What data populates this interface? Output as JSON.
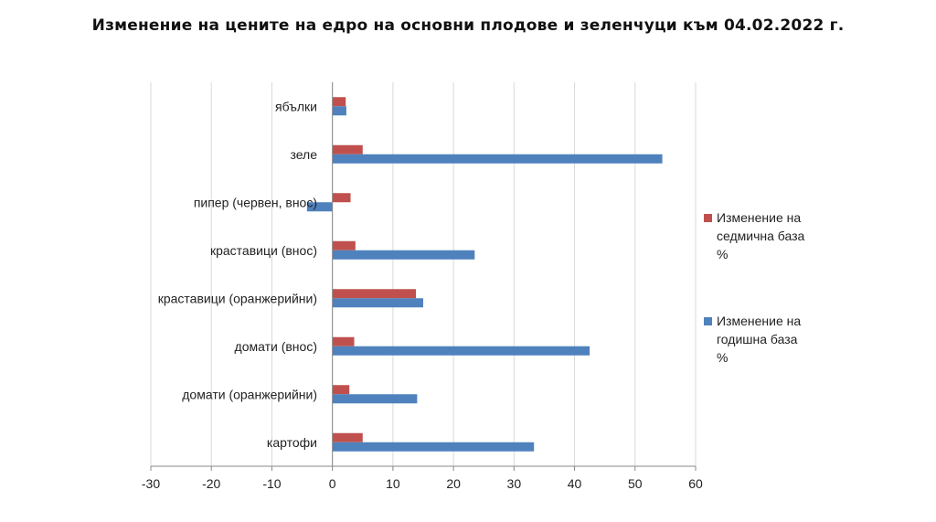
{
  "chart_data": {
    "type": "bar",
    "orientation": "horizontal",
    "title": "Изменение на цените на едро на основни плодове и зеленчуци към 04.02.2022 г.",
    "categories": [
      "ябълки",
      "зеле",
      "пипер (червен, внос)",
      "краставици (внос)",
      "краставици (оранжерийни)",
      "домати (внос)",
      "домати (оранжерийни)",
      "картофи"
    ],
    "series": [
      {
        "name": "Изменение на седмична база %",
        "legend_lines": [
          "Изменение на",
          "седмична база",
          "%"
        ],
        "color": "#c0504d",
        "values": [
          2.2,
          5.0,
          3.0,
          3.8,
          13.8,
          3.6,
          2.8,
          5.0
        ]
      },
      {
        "name": "Изменение на годишна база %",
        "legend_lines": [
          "Изменение на",
          "годишна база",
          "%"
        ],
        "color": "#4f81bd",
        "values": [
          2.3,
          54.5,
          -4.2,
          23.5,
          15.0,
          42.5,
          14.0,
          33.3
        ]
      }
    ],
    "xlim": [
      -30,
      60
    ],
    "xticks": [
      -30,
      -20,
      -10,
      0,
      10,
      20,
      30,
      40,
      50,
      60
    ],
    "grid": true,
    "legend_position": "right"
  }
}
